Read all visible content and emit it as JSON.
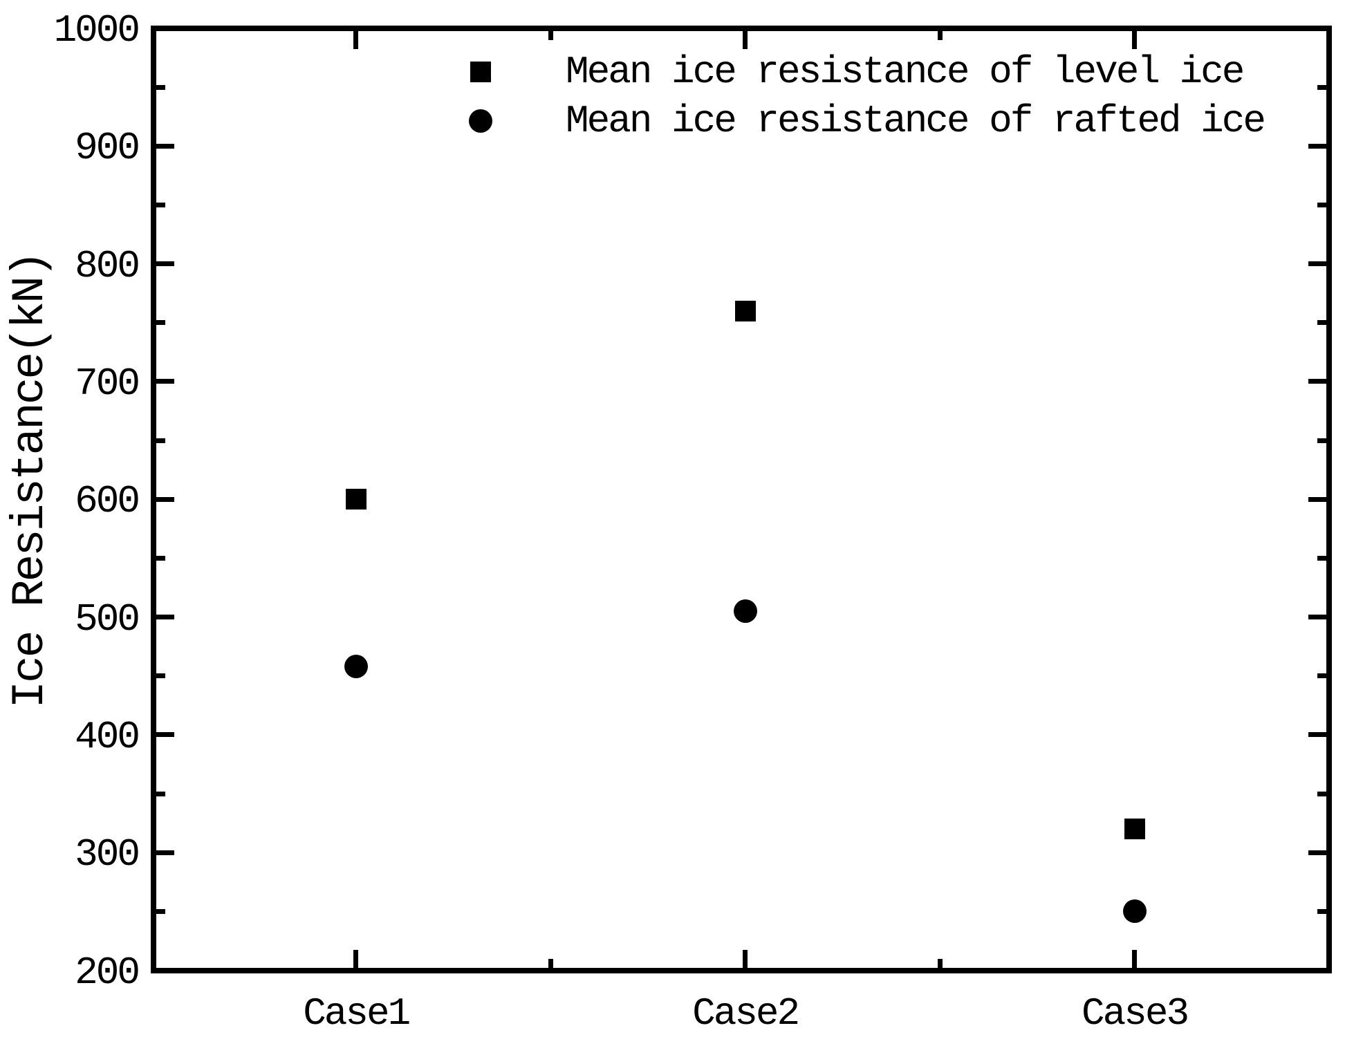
{
  "chart_data": {
    "type": "scatter",
    "title": "",
    "xlabel": "",
    "ylabel": "Ice Resistance(kN)",
    "categories": [
      "Case1",
      "Case2",
      "Case3"
    ],
    "series": [
      {
        "name": "Mean ice resistance of level ice",
        "marker": "square",
        "color": "#000000",
        "values": [
          600,
          760,
          320
        ]
      },
      {
        "name": "Mean ice resistance of rafted ice",
        "marker": "circle",
        "color": "#000000",
        "values": [
          458,
          505,
          250
        ]
      }
    ],
    "ylim": [
      200,
      1000
    ],
    "y_tick_labels": [
      "200",
      "300",
      "400",
      "500",
      "600",
      "700",
      "800",
      "900",
      "1000"
    ],
    "y_major_ticks": [
      300,
      400,
      500,
      600,
      700,
      800,
      900
    ],
    "y_minor_ticks": [
      250,
      350,
      450,
      550,
      650,
      750,
      850,
      950
    ],
    "xlim": [
      0.48,
      3.5
    ],
    "x_major_ticks": [
      1,
      2,
      3
    ],
    "x_minor_ticks": [
      1.5,
      2.5
    ],
    "grid": false,
    "legend_position": "top-center",
    "background_color": "#ffffff",
    "foreground_color": "#000000"
  }
}
